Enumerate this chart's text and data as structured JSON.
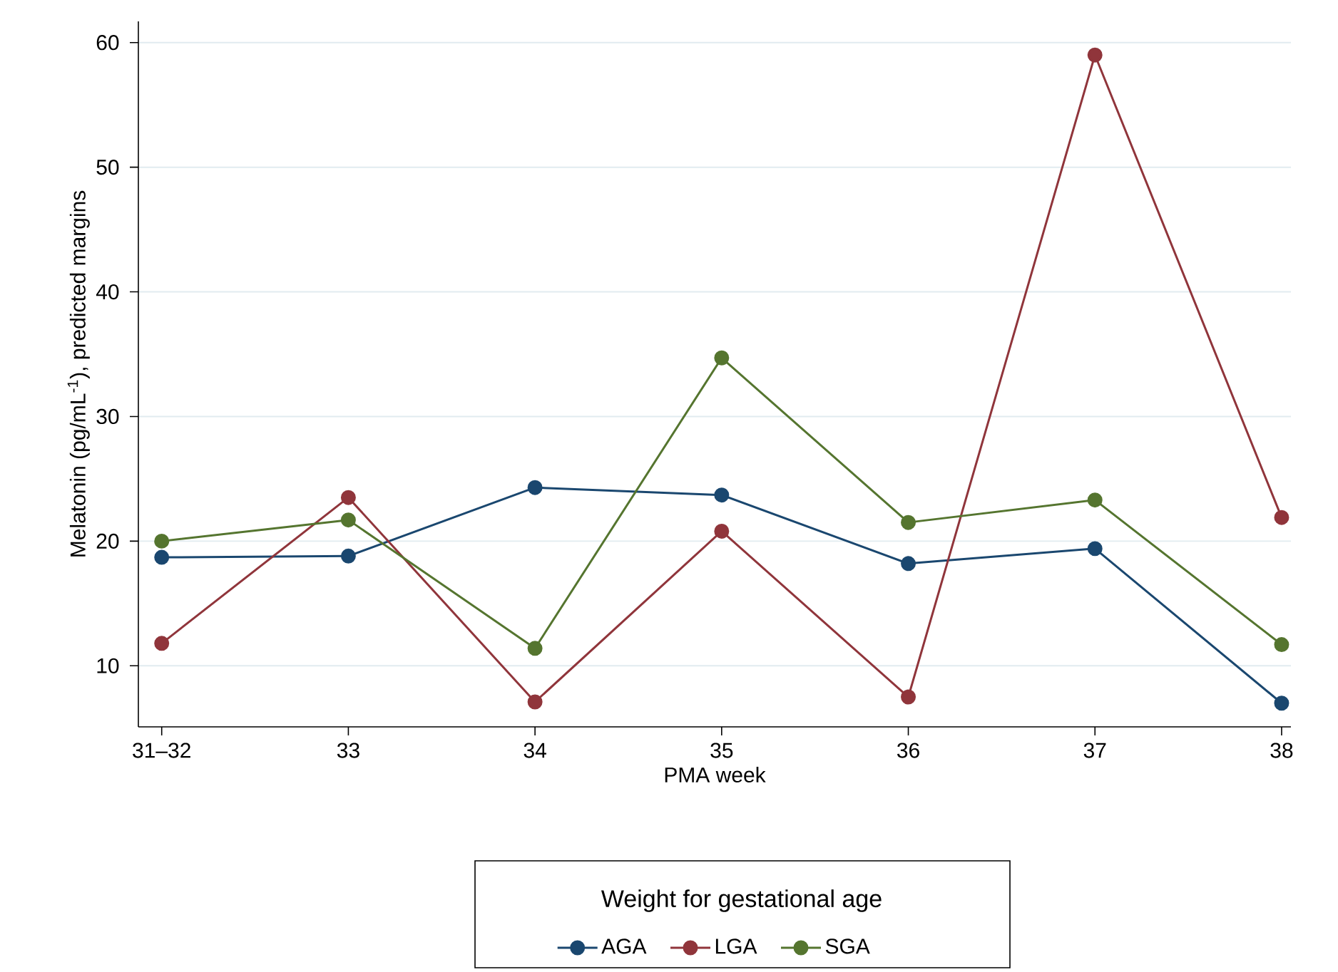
{
  "chart_data": {
    "type": "line",
    "xlabel": "PMA week",
    "ylabel": "Melatonin (pg/mL$^{-1}$),  predicted margins",
    "legend_title": "Weight for gestational age",
    "categories": [
      "31–32",
      "33",
      "34",
      "35",
      "36",
      "37",
      "38"
    ],
    "series": [
      {
        "name": "AGA",
        "color": "#1a476f",
        "values": [
          18.7,
          18.8,
          24.3,
          23.7,
          18.2,
          19.4,
          7.0
        ]
      },
      {
        "name": "LGA",
        "color": "#90353b",
        "values": [
          11.8,
          23.5,
          7.1,
          20.8,
          7.5,
          59.0,
          21.9
        ]
      },
      {
        "name": "SGA",
        "color": "#55752f",
        "values": [
          20.0,
          21.7,
          11.4,
          34.7,
          21.5,
          23.3,
          11.7
        ]
      }
    ],
    "ylim": [
      5.1,
      61.7
    ],
    "yticks": [
      10,
      20,
      30,
      40,
      50,
      60
    ],
    "grid": "y",
    "legend": "bottom",
    "marker": "circle",
    "line_style": "solid"
  }
}
